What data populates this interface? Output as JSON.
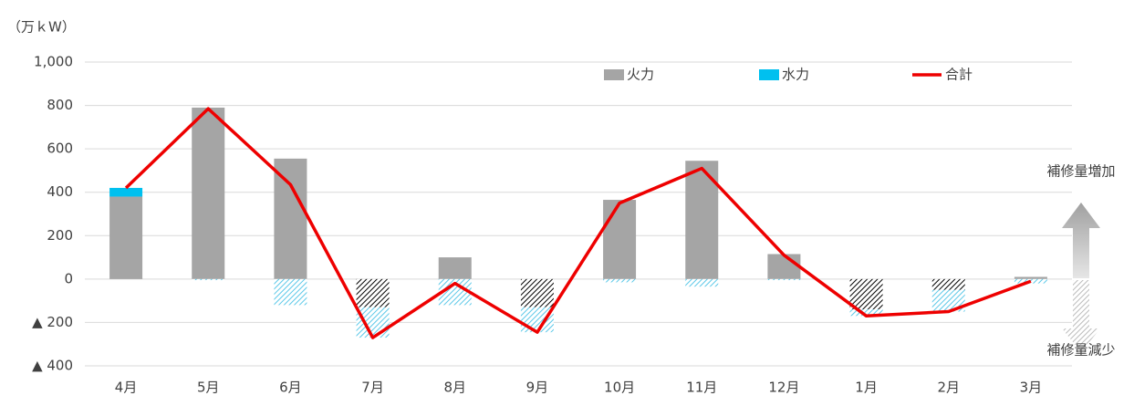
{
  "chart_data": {
    "type": "bar_line",
    "unit_label": "（万ｋW）",
    "categories": [
      "4月",
      "5月",
      "6月",
      "7月",
      "8月",
      "9月",
      "10月",
      "11月",
      "12月",
      "1月",
      "2月",
      "3月"
    ],
    "series": [
      {
        "name": "火力",
        "color": "#a5a5a5",
        "negative_hatch": "#000000",
        "kind": "bar",
        "values": [
          380,
          790,
          555,
          -130,
          100,
          -130,
          365,
          545,
          115,
          -140,
          -50,
          10
        ]
      },
      {
        "name": "水力",
        "color": "#00c0ef",
        "negative_hatch": "#5bc8e8",
        "kind": "bar",
        "values": [
          40,
          -5,
          -120,
          -140,
          -120,
          -115,
          -15,
          -35,
          -5,
          -30,
          -100,
          -20
        ]
      },
      {
        "name": "合計",
        "color": "#ee0000",
        "kind": "line",
        "values": [
          420,
          785,
          435,
          -270,
          -20,
          -245,
          350,
          510,
          110,
          -170,
          -150,
          -10
        ]
      }
    ],
    "ylim": [
      -400,
      1000
    ],
    "yticks": [
      {
        "value": 1000,
        "label": "1,000"
      },
      800,
      600,
      400,
      200,
      0,
      {
        "value": -200,
        "label": "▲ 200"
      },
      {
        "value": -400,
        "label": "▲ 400"
      }
    ],
    "grid": true,
    "legend": "top-right",
    "annotations": [
      "補修量増加",
      "補修量減少"
    ]
  }
}
